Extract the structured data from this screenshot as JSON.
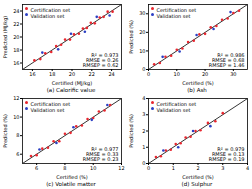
{
  "chart_data": [
    {
      "type": "scatter",
      "title": "(a) Calorific value",
      "x_label": "Certified (MJ/kg)",
      "y_label": "Predicted (MJ/kg)",
      "xlim": [
        15,
        25
      ],
      "ylim": [
        15,
        25
      ],
      "xticks": [
        16,
        18,
        20,
        22,
        24
      ],
      "yticks": [
        16,
        18,
        20,
        22,
        24
      ],
      "legend": "top-left",
      "annotations": [
        "R² = 0.973",
        "RMSE = 0.26",
        "RMSEP = 0.62"
      ],
      "series": [
        {
          "name": "Certification set",
          "color": "#e8262f",
          "marker": "circle",
          "values": [
            [
              16.2,
              16.4
            ],
            [
              16.8,
              16.6
            ],
            [
              17.3,
              17.5
            ],
            [
              17.9,
              17.7
            ],
            [
              18.4,
              18.6
            ],
            [
              18.9,
              18.8
            ],
            [
              19.3,
              19.6
            ],
            [
              19.8,
              19.6
            ],
            [
              20.2,
              20.4
            ],
            [
              20.7,
              20.5
            ],
            [
              21.1,
              21.3
            ],
            [
              21.5,
              21.4
            ],
            [
              21.9,
              22.2
            ],
            [
              22.3,
              22.1
            ],
            [
              22.8,
              23.0
            ],
            [
              23.2,
              23.1
            ],
            [
              23.6,
              23.9
            ],
            [
              24.1,
              23.9
            ]
          ]
        },
        {
          "name": "Validation set",
          "color": "#2b3fc4",
          "marker": "circle",
          "values": [
            [
              17.0,
              17.6
            ],
            [
              18.6,
              18.1
            ],
            [
              19.9,
              20.5
            ],
            [
              21.3,
              20.8
            ],
            [
              22.5,
              23.1
            ],
            [
              23.8,
              23.3
            ]
          ]
        }
      ]
    },
    {
      "type": "scatter",
      "title": "(b) Ash",
      "x_label": "Certified (%)",
      "y_label": "Predicted (%)",
      "xlim": [
        0,
        35
      ],
      "ylim": [
        0,
        35
      ],
      "xticks": [
        0,
        10,
        20,
        30
      ],
      "yticks": [
        0,
        10,
        20,
        30
      ],
      "legend": "top-left",
      "annotations": [
        "R² = 0.986",
        "RMSE = 0.68",
        "RMSEP = 1.46"
      ],
      "series": [
        {
          "name": "Certification set",
          "color": "#e8262f",
          "marker": "circle",
          "values": [
            [
              2,
              2.8
            ],
            [
              4,
              3.5
            ],
            [
              6,
              6.9
            ],
            [
              8,
              7.4
            ],
            [
              10,
              10.6
            ],
            [
              12,
              11.3
            ],
            [
              14,
              14.8
            ],
            [
              16,
              15.5
            ],
            [
              18,
              18.9
            ],
            [
              20,
              19.2
            ],
            [
              22,
              22.7
            ],
            [
              24,
              23.4
            ],
            [
              26,
              26.8
            ],
            [
              28,
              27.5
            ],
            [
              30,
              30.4
            ],
            [
              32,
              31.6
            ]
          ]
        },
        {
          "name": "Validation set",
          "color": "#2b3fc4",
          "marker": "circle",
          "values": [
            [
              5,
              6.8
            ],
            [
              11,
              9.7
            ],
            [
              17,
              18.6
            ],
            [
              23,
              21.8
            ],
            [
              29,
              30.9
            ]
          ]
        }
      ]
    },
    {
      "type": "scatter",
      "title": "(c) Volatile matter",
      "x_label": "Certified (%)",
      "y_label": "Predicted (%)",
      "xlim": [
        5,
        12
      ],
      "ylim": [
        5,
        12
      ],
      "xticks": [
        6,
        8,
        10,
        12
      ],
      "yticks": [
        6,
        8,
        10,
        12
      ],
      "legend": "top-left",
      "annotations": [
        "R² = 0.977",
        "RMSE = 0.33",
        "RMSEP = 0.23"
      ],
      "series": [
        {
          "name": "Certification set",
          "color": "#e8262f",
          "marker": "circle",
          "values": [
            [
              5.6,
              5.8
            ],
            [
              6.0,
              5.9
            ],
            [
              6.4,
              6.6
            ],
            [
              6.8,
              6.7
            ],
            [
              7.2,
              7.4
            ],
            [
              7.6,
              7.4
            ],
            [
              8.0,
              8.2
            ],
            [
              8.4,
              8.3
            ],
            [
              8.8,
              9.0
            ],
            [
              9.2,
              9.1
            ],
            [
              9.6,
              9.8
            ],
            [
              10.0,
              9.9
            ],
            [
              10.4,
              10.6
            ],
            [
              10.8,
              10.7
            ],
            [
              11.2,
              11.3
            ]
          ]
        },
        {
          "name": "Validation set",
          "color": "#2b3fc4",
          "marker": "circle",
          "values": [
            [
              6.2,
              6.5
            ],
            [
              7.4,
              7.2
            ],
            [
              8.6,
              8.9
            ],
            [
              9.9,
              9.7
            ],
            [
              11.0,
              11.3
            ]
          ]
        }
      ]
    },
    {
      "type": "scatter",
      "title": "(d) Sulphur",
      "x_label": "Certified (%)",
      "y_label": "Predicted (%)",
      "xlim": [
        0,
        4
      ],
      "ylim": [
        0,
        4
      ],
      "xticks": [
        0,
        1,
        2,
        3,
        4
      ],
      "yticks": [
        0,
        1,
        2,
        3,
        4
      ],
      "legend": "top-left",
      "annotations": [
        "R² = 0.979",
        "RMSE = 0.13",
        "RMSEP = 0.19"
      ],
      "series": [
        {
          "name": "Certification set",
          "color": "#e8262f",
          "marker": "circle",
          "values": [
            [
              0.3,
              0.4
            ],
            [
              0.5,
              0.45
            ],
            [
              0.7,
              0.8
            ],
            [
              0.9,
              0.85
            ],
            [
              1.1,
              1.2
            ],
            [
              1.3,
              1.25
            ],
            [
              1.5,
              1.6
            ],
            [
              1.7,
              1.65
            ],
            [
              1.9,
              2.0
            ],
            [
              2.1,
              2.05
            ],
            [
              2.4,
              2.5
            ],
            [
              2.7,
              2.6
            ],
            [
              3.0,
              3.1
            ]
          ]
        },
        {
          "name": "Validation set",
          "color": "#2b3fc4",
          "marker": "circle",
          "values": [
            [
              0.6,
              0.8
            ],
            [
              1.2,
              1.0
            ],
            [
              1.8,
              2.0
            ],
            [
              2.5,
              2.3
            ]
          ]
        }
      ]
    }
  ]
}
